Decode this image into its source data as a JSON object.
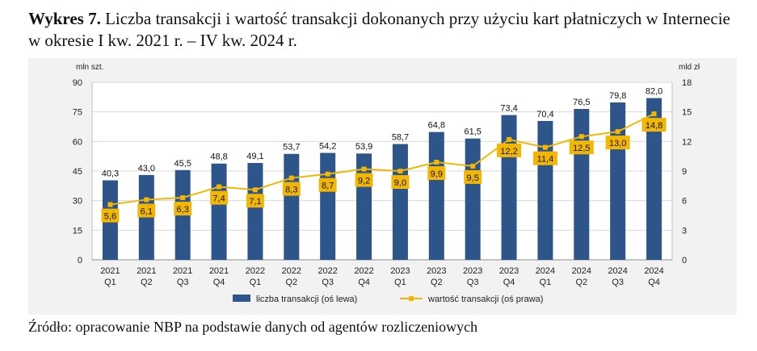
{
  "title": {
    "prefix": "Wykres 7.",
    "text": "Liczba transakcji i wartość transakcji dokonanych przy użyciu kart płatniczych w Internecie w okresie I kw. 2021 r. – IV kw. 2024 r."
  },
  "source": "Źródło: opracowanie NBP na podstawie danych od agentów rozliczeniowych",
  "colors": {
    "bar": "#2e5589",
    "line": "#f2b705",
    "label_box": "#f2b705",
    "plot_bg": "#f2f2f2",
    "grid": "#d9d9d9"
  },
  "chart_data": {
    "type": "bar",
    "title": "Liczba transakcji i wartość transakcji dokonanych przy użyciu kart płatniczych w Internecie",
    "categories": [
      [
        "2021",
        "Q1"
      ],
      [
        "2021",
        "Q2"
      ],
      [
        "2021",
        "Q3"
      ],
      [
        "2021",
        "Q4"
      ],
      [
        "2022",
        "Q1"
      ],
      [
        "2022",
        "Q2"
      ],
      [
        "2022",
        "Q3"
      ],
      [
        "2022",
        "Q4"
      ],
      [
        "2023",
        "Q1"
      ],
      [
        "2023",
        "Q2"
      ],
      [
        "2023",
        "Q3"
      ],
      [
        "2023",
        "Q4"
      ],
      [
        "2024",
        "Q1"
      ],
      [
        "2024",
        "Q2"
      ],
      [
        "2024",
        "Q3"
      ],
      [
        "2024",
        "Q4"
      ]
    ],
    "left_axis": {
      "label": "mln szt.",
      "ylim": [
        0,
        90
      ],
      "ticks": [
        0,
        15,
        30,
        45,
        60,
        75,
        90
      ]
    },
    "right_axis": {
      "label": "mld zł",
      "ylim": [
        0,
        18
      ],
      "ticks": [
        0,
        3,
        6,
        9,
        12,
        15,
        18
      ]
    },
    "series": [
      {
        "name": "liczba transakcji (oś lewa)",
        "type": "bar",
        "axis": "left",
        "values": [
          40.3,
          43.0,
          45.5,
          48.8,
          49.1,
          53.7,
          54.2,
          53.9,
          58.7,
          64.8,
          61.5,
          73.4,
          70.4,
          76.5,
          79.8,
          82.0
        ],
        "labels": [
          "40,3",
          "43,0",
          "45,5",
          "48,8",
          "49,1",
          "53,7",
          "54,2",
          "53,9",
          "58,7",
          "64,8",
          "61,5",
          "73,4",
          "70,4",
          "76,5",
          "79,8",
          "82,0"
        ]
      },
      {
        "name": "wartość transakcji (oś prawa)",
        "type": "line",
        "axis": "right",
        "values": [
          5.6,
          6.1,
          6.3,
          7.4,
          7.1,
          8.3,
          8.7,
          9.2,
          9.0,
          9.9,
          9.5,
          12.2,
          11.4,
          12.5,
          13.0,
          14.8
        ],
        "labels": [
          "5,6",
          "6,1",
          "6,3",
          "7,4",
          "7,1",
          "8,3",
          "8,7",
          "9,2",
          "9,0",
          "9,9",
          "9,5",
          "12,2",
          "11,4",
          "12,5",
          "13,0",
          "14,8"
        ]
      }
    ],
    "legend": "bottom"
  }
}
